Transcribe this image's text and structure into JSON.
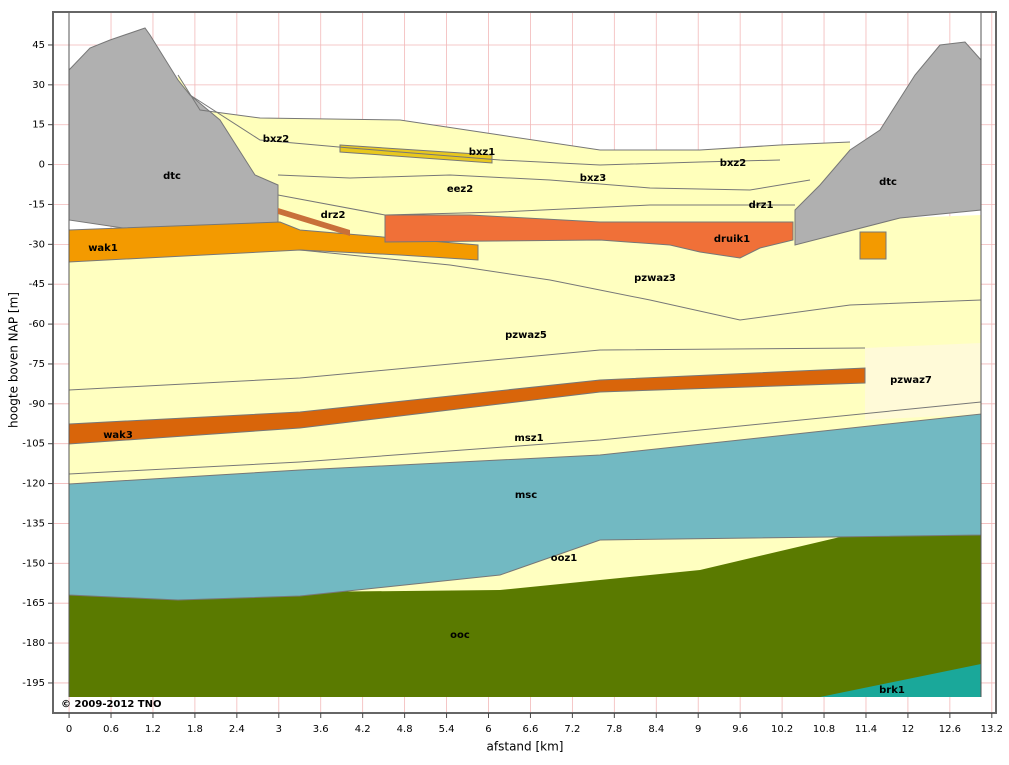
{
  "chart_data": {
    "type": "cross-section",
    "x_label": "afstand [km]",
    "y_label": "hoogte boven NAP [m]",
    "xlim": [
      -0.23,
      13.26
    ],
    "ylim": [
      -206.3,
      57.4
    ],
    "xticks": [
      0,
      0.6,
      1.2,
      1.8,
      2.4,
      3,
      3.6,
      4.2,
      4.8,
      5.4,
      6,
      6.6,
      7.2,
      7.8,
      8.4,
      9,
      9.6,
      10.2,
      10.8,
      11.4,
      12,
      12.6,
      13.2
    ],
    "yticks": [
      45,
      30,
      15,
      0,
      -15,
      -30,
      -45,
      -60,
      -75,
      -90,
      -105,
      -120,
      -135,
      -150,
      -165,
      -180,
      -195
    ],
    "grid": true,
    "layer_labels": [
      "dtc",
      "bxz2",
      "bxz1",
      "bxz3",
      "bxz2",
      "eez2",
      "drz2",
      "drz1",
      "dtc",
      "wak1",
      "druik1",
      "pzwaz3",
      "pzwaz5",
      "pzwaz7",
      "wak3",
      "msz1",
      "msc",
      "ooz1",
      "ooc",
      "brk1"
    ],
    "copyright": "© 2009-2012 TNO"
  }
}
